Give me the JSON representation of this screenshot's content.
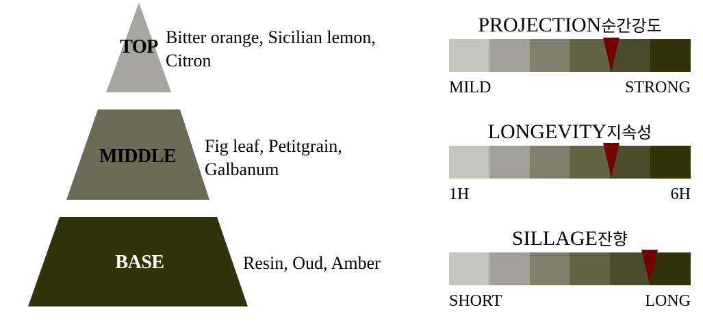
{
  "pyramid": {
    "tiers": [
      {
        "label": "TOP",
        "notes_line1": "Bitter orange, Sicilian lemon,",
        "notes_line2": "Citron",
        "color": "#a6a69e",
        "label_color": "#000000"
      },
      {
        "label": "MIDDLE",
        "notes_line1": "Fig leaf, Petitgrain,",
        "notes_line2": "Galbanum",
        "color": "#6b6b55",
        "label_color": "#000000"
      },
      {
        "label": "BASE",
        "notes_line1": "Resin, Oud, Amber",
        "color": "#33330a",
        "label_color": "#ffffff"
      }
    ]
  },
  "scale_colors": [
    "#c4c4bf",
    "#a0a098",
    "#7f7f6c",
    "#636346",
    "#4b4b2e",
    "#33330a"
  ],
  "marker_color": "#750000",
  "meters": [
    {
      "title": "PROJECTION",
      "title_ko": "순간강도",
      "low": "MILD",
      "high": "STRONG",
      "level": 0.67
    },
    {
      "title": "LONGEVITY",
      "title_ko": "지속성",
      "low": "1H",
      "high": "6H",
      "level": 0.67
    },
    {
      "title": "SILLAGE",
      "title_ko": "잔향",
      "low": "SHORT",
      "high": "LONG",
      "level": 0.83
    }
  ]
}
